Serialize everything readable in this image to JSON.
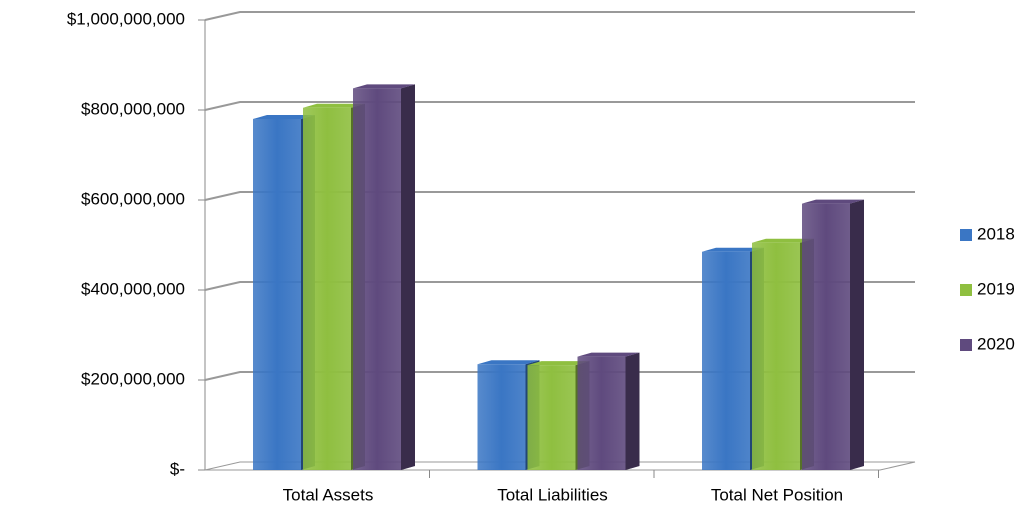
{
  "chart_data": {
    "type": "bar3d",
    "categories": [
      "Total Assets",
      "Total Liabilities",
      "Total Net Position"
    ],
    "series": [
      {
        "name": "2018",
        "color": "#3a76c4",
        "values": [
          780000000,
          235000000,
          485000000
        ]
      },
      {
        "name": "2019",
        "color": "#8fbf40",
        "values": [
          805000000,
          233000000,
          505000000
        ]
      },
      {
        "name": "2020",
        "color": "#5f4a7e",
        "values": [
          848000000,
          252000000,
          592000000
        ]
      }
    ],
    "ylim": [
      0,
      1000000000
    ],
    "yticks": [
      {
        "value": 0,
        "label": "$-"
      },
      {
        "value": 200000000,
        "label": "$200,000,000"
      },
      {
        "value": 400000000,
        "label": "$400,000,000"
      },
      {
        "value": 600000000,
        "label": "$600,000,000"
      },
      {
        "value": 800000000,
        "label": "$800,000,000"
      },
      {
        "value": 1000000000,
        "label": "$1,000,000,000"
      }
    ],
    "grid": true,
    "legend": "right"
  }
}
